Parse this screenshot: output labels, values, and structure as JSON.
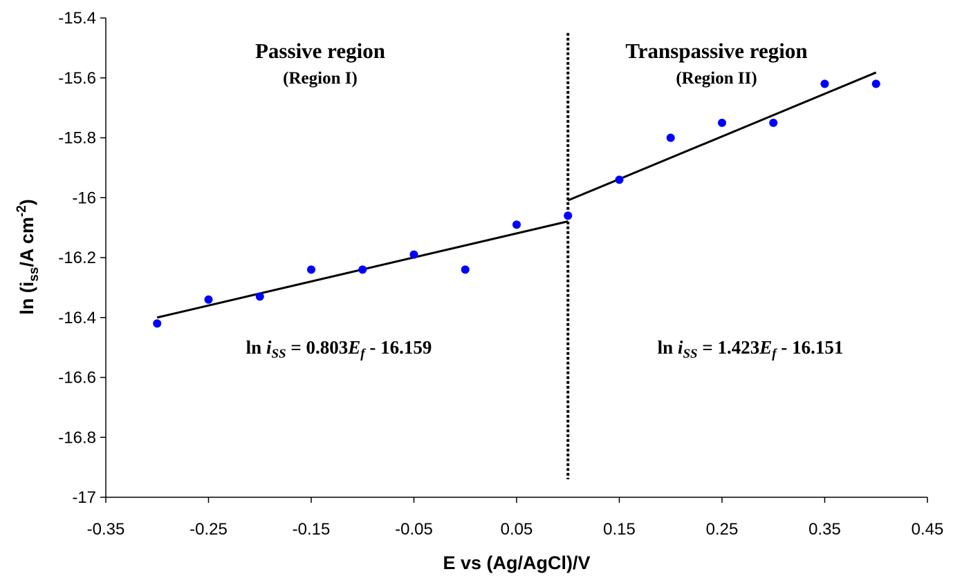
{
  "chart_data": {
    "type": "scatter",
    "x_label": "E vs (Ag/AgCl)/V",
    "y_label": [
      "ln (i",
      "ss",
      "/A cm",
      "-2",
      ")"
    ],
    "xlim": [
      -0.35,
      0.45
    ],
    "ylim": [
      -17,
      -15.4
    ],
    "xticks": [
      -0.35,
      -0.25,
      -0.15,
      -0.05,
      0.05,
      0.15,
      0.25,
      0.35,
      0.45
    ],
    "yticks": [
      -17,
      -16.8,
      -16.6,
      -16.4,
      -16.2,
      -16,
      -15.8,
      -15.6,
      -15.4
    ],
    "series": [
      {
        "color": "#0000ff",
        "x": [
          -0.3,
          -0.25,
          -0.2,
          -0.15,
          -0.1,
          -0.05,
          0,
          0.05,
          0.1,
          0.15,
          0.2,
          0.25,
          0.3,
          0.35,
          0.4
        ],
        "values": [
          -16.42,
          -16.34,
          -16.33,
          -16.24,
          -16.24,
          -16.19,
          -16.24,
          -16.09,
          -16.06,
          -15.94,
          -15.8,
          -15.75,
          -15.75,
          -15.62,
          -15.62
        ]
      }
    ],
    "fits": [
      {
        "color": "#000000",
        "x": [
          -0.3,
          0.1
        ],
        "values": [
          -16.4,
          -16.079
        ]
      },
      {
        "color": "#000000",
        "x": [
          0.1,
          0.4
        ],
        "values": [
          -16.009,
          -15.582
        ]
      }
    ],
    "divider": {
      "x": 0.1,
      "y": [
        -15.45,
        -16.94
      ]
    },
    "annotations": {
      "region1_title": "Passive region",
      "region1_sub": "(Region I)",
      "region2_title": "Transpassive region",
      "region2_sub": "(Region II)",
      "equation1": [
        "ln ",
        "i",
        "SS",
        " = 0.803",
        "E",
        "f",
        " - 16.159"
      ],
      "equation2": [
        "ln ",
        "i",
        "SS",
        " = 1.423",
        "E",
        "f",
        " - 16.151"
      ]
    }
  }
}
